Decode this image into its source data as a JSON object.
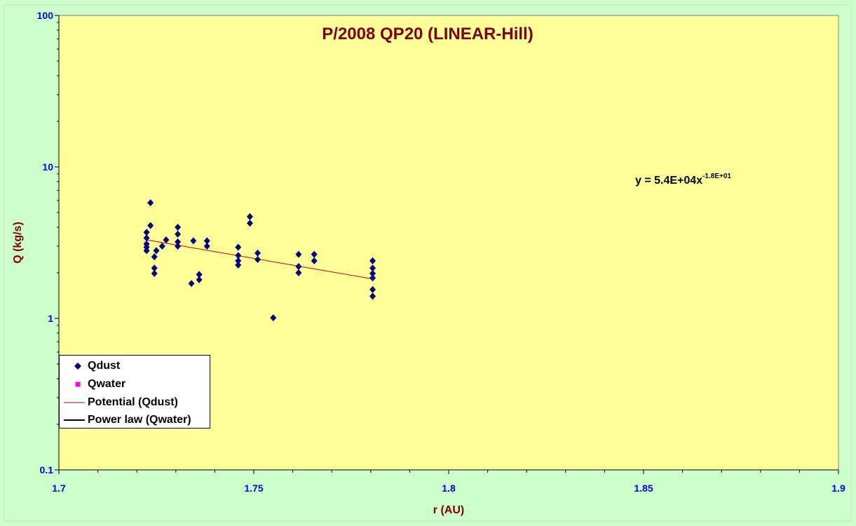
{
  "chart_data": {
    "type": "scatter",
    "title": "P/2008 QP20 (LINEAR-Hill)",
    "xlabel": "r (AU)",
    "ylabel": "Q (kg/s)",
    "xlim": [
      1.7,
      1.9
    ],
    "ylim": [
      0.1,
      100
    ],
    "y_scale": "log",
    "x_ticks": [
      "1.7",
      "1.75",
      "1.8",
      "1.85",
      "1.9"
    ],
    "y_ticks": [
      "0.1",
      "1",
      "10",
      "100"
    ],
    "grid": false,
    "legend_position": "bottom-left",
    "equation": {
      "prefix": "y = 5.4E+04x",
      "exponent": "-1.8E+01"
    },
    "series": [
      {
        "name": "Qdust",
        "kind": "scatter",
        "marker": "diamond",
        "color": "#000080",
        "points": [
          [
            1.7225,
            3.7
          ],
          [
            1.7225,
            3.4
          ],
          [
            1.7225,
            3.1
          ],
          [
            1.7225,
            2.95
          ],
          [
            1.7225,
            2.8
          ],
          [
            1.7235,
            5.8
          ],
          [
            1.7235,
            4.1
          ],
          [
            1.7245,
            2.55
          ],
          [
            1.7245,
            2.15
          ],
          [
            1.7245,
            1.98
          ],
          [
            1.725,
            2.8
          ],
          [
            1.7265,
            3.0
          ],
          [
            1.7275,
            3.3
          ],
          [
            1.7305,
            4.0
          ],
          [
            1.7305,
            3.6
          ],
          [
            1.7305,
            3.2
          ],
          [
            1.7305,
            3.0
          ],
          [
            1.734,
            1.7
          ],
          [
            1.7345,
            3.25
          ],
          [
            1.736,
            1.95
          ],
          [
            1.736,
            1.8
          ],
          [
            1.738,
            3.25
          ],
          [
            1.738,
            3.0
          ],
          [
            1.746,
            2.95
          ],
          [
            1.746,
            2.6
          ],
          [
            1.746,
            2.4
          ],
          [
            1.746,
            2.25
          ],
          [
            1.749,
            4.7
          ],
          [
            1.749,
            4.25
          ],
          [
            1.751,
            2.7
          ],
          [
            1.751,
            2.45
          ],
          [
            1.755,
            1.01
          ],
          [
            1.7615,
            2.65
          ],
          [
            1.7615,
            2.2
          ],
          [
            1.7615,
            2.0
          ],
          [
            1.7655,
            2.65
          ],
          [
            1.7655,
            2.4
          ],
          [
            1.7805,
            2.4
          ],
          [
            1.7805,
            2.15
          ],
          [
            1.7805,
            1.98
          ],
          [
            1.7805,
            1.85
          ],
          [
            1.7805,
            1.55
          ],
          [
            1.7805,
            1.4
          ]
        ]
      },
      {
        "name": "Qwater",
        "kind": "scatter",
        "marker": "square",
        "color": "#ff00ff",
        "points": []
      },
      {
        "name": "Potential (Qdust)",
        "kind": "trendline",
        "color": "#cc0000",
        "x": [
          1.7225,
          1.7805
        ],
        "values": [
          3.3,
          1.82
        ]
      },
      {
        "name": "Power law (Qwater)",
        "kind": "trendline",
        "color": "#000000",
        "x": [],
        "values": []
      }
    ],
    "colors": {
      "background": "#ccffcc",
      "plot_area": "#ffff99",
      "title": "#800000",
      "axis_label": "#800000",
      "tick_label": "#0000ff"
    }
  }
}
